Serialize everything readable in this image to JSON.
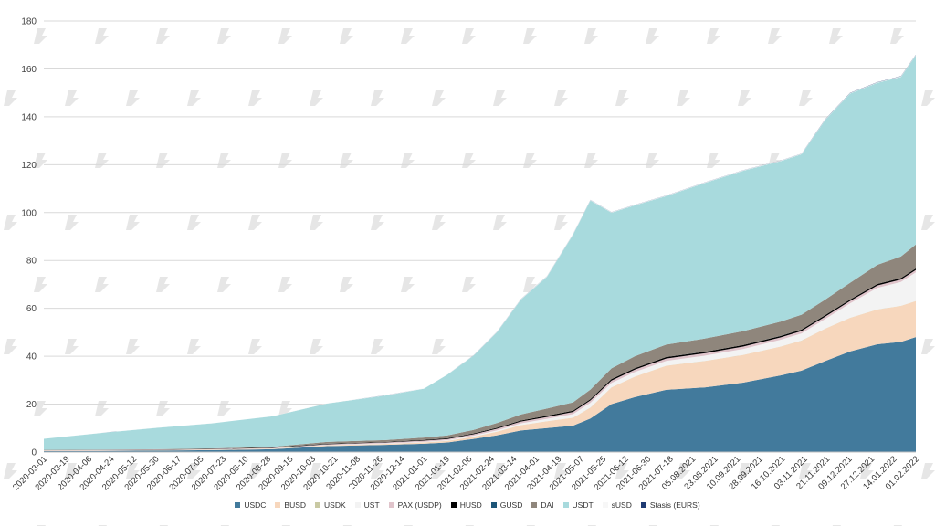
{
  "chart_data": {
    "type": "area",
    "stacked": true,
    "title": "",
    "xlabel": "",
    "ylabel": "",
    "ylim": [
      0,
      180
    ],
    "yticks": [
      0,
      20,
      40,
      60,
      80,
      100,
      120,
      140,
      160,
      180
    ],
    "grid": true,
    "legend_position": "bottom",
    "x_tick_labels": [
      "2020-03-01",
      "2020-03-19",
      "2020-04-06",
      "2020-04-24",
      "2020-05-12",
      "2020-05-30",
      "2020-06-17",
      "2020-07-05",
      "2020-07-23",
      "2020-08-10",
      "2020-08-28",
      "2020-09-15",
      "2020-10-03",
      "2020-10-21",
      "2020-11-08",
      "2020-11-26",
      "2020-12-14",
      "2021-01-01",
      "2021-01-19",
      "2021-02-06",
      "2021-02-24",
      "2021-03-14",
      "2021-04-01",
      "2021-04-19",
      "2021-05-07",
      "2021-05-25",
      "2021-06-12",
      "2021-06-30",
      "2021-07-18",
      "05.08.2021",
      "23.08.2021",
      "10.09.2021",
      "28.09.2021",
      "16.10.2021",
      "03.11.2021",
      "21.11.2021",
      "09.12.2021",
      "27.12.2021",
      "14.01.2022",
      "01.02.2022"
    ],
    "sample_points": [
      "2020-03-01",
      "2020-04-15",
      "2020-06-01",
      "2020-07-15",
      "2020-09-01",
      "2020-10-15",
      "2020-12-01",
      "2021-01-01",
      "2021-01-20",
      "2021-02-10",
      "2021-03-01",
      "2021-03-20",
      "2021-04-10",
      "2021-05-01",
      "2021-05-15",
      "2021-06-01",
      "2021-06-20",
      "2021-07-15",
      "2021-08-15",
      "2021-09-15",
      "2021-10-15",
      "2021-11-01",
      "2021-11-20",
      "2021-12-10",
      "2022-01-01",
      "2022-01-20",
      "2022-02-01"
    ],
    "series": [
      {
        "name": "USDC",
        "color": "#427a9c",
        "values": [
          0.4,
          0.5,
          0.6,
          0.8,
          1.2,
          2.5,
          3,
          3.5,
          4,
          5.5,
          7,
          9,
          10,
          11,
          14,
          20,
          23,
          26,
          27,
          29,
          32,
          34,
          38,
          42,
          45,
          46,
          48
        ]
      },
      {
        "name": "BUSD",
        "color": "#f7d7bd",
        "values": [
          0.1,
          0.1,
          0.1,
          0.2,
          0.2,
          0.3,
          0.4,
          0.5,
          0.6,
          0.9,
          1.5,
          2.2,
          2.8,
          3.3,
          4.5,
          7,
          8.5,
          10,
          11,
          11.5,
          12,
          12.5,
          13.5,
          14,
          14.5,
          15,
          15
        ]
      },
      {
        "name": "USDK",
        "color": "#c9c9a3",
        "values": [
          0.05,
          0.05,
          0.05,
          0.05,
          0.05,
          0.05,
          0.05,
          0.05,
          0.05,
          0.05,
          0.05,
          0.05,
          0.05,
          0.05,
          0.05,
          0.05,
          0.05,
          0.05,
          0.05,
          0.05,
          0.05,
          0.05,
          0.05,
          0.05,
          0.05,
          0.05,
          0.05
        ]
      },
      {
        "name": "UST",
        "color": "#f3f3f3",
        "values": [
          0.01,
          0.01,
          0.01,
          0.01,
          0.05,
          0.1,
          0.15,
          0.2,
          0.3,
          0.4,
          0.5,
          0.7,
          1,
          1.5,
          2,
          1.8,
          1.9,
          2,
          2.2,
          2.5,
          2.8,
          3,
          4,
          6,
          9,
          10,
          12
        ]
      },
      {
        "name": "PAX (USDP)",
        "color": "#e0c4cb",
        "values": [
          0.2,
          0.2,
          0.2,
          0.2,
          0.2,
          0.3,
          0.4,
          0.5,
          0.5,
          0.6,
          0.7,
          0.8,
          0.8,
          0.9,
          1,
          1,
          1,
          1,
          1,
          1,
          1,
          1,
          1,
          1,
          1,
          1,
          1
        ]
      },
      {
        "name": "HUSD",
        "color": "#000000",
        "values": [
          0.05,
          0.05,
          0.1,
          0.1,
          0.2,
          0.2,
          0.2,
          0.3,
          0.3,
          0.3,
          0.4,
          0.4,
          0.5,
          0.5,
          0.5,
          0.6,
          0.6,
          0.6,
          0.6,
          0.6,
          0.6,
          0.6,
          0.6,
          0.6,
          0.6,
          0.6,
          0.6
        ]
      },
      {
        "name": "GUSD",
        "color": "#1d5577",
        "values": [
          0.01,
          0.01,
          0.01,
          0.01,
          0.01,
          0.01,
          0.01,
          0.01,
          0.01,
          0.01,
          0.01,
          0.01,
          0.01,
          0.01,
          0.01,
          0.01,
          0.01,
          0.01,
          0.01,
          0.01,
          0.01,
          0.01,
          0.01,
          0.01,
          0.01,
          0.01,
          0.01
        ]
      },
      {
        "name": "DAI",
        "color": "#8f867c",
        "values": [
          0.1,
          0.1,
          0.1,
          0.15,
          0.3,
          0.8,
          0.8,
          1,
          1.2,
          1.5,
          2,
          2.5,
          3,
          3.5,
          4,
          4.5,
          5,
          5.2,
          5.5,
          5.8,
          6,
          6.2,
          6.5,
          7,
          8,
          9,
          10
        ]
      },
      {
        "name": "USDT",
        "color": "#a8dadd",
        "values": [
          4.6,
          6.9,
          9,
          10.5,
          12.7,
          16,
          18.6,
          20.4,
          25.4,
          31,
          38,
          48,
          55,
          70,
          79,
          65,
          63,
          62,
          65,
          67,
          67,
          67,
          75,
          79,
          76,
          75,
          79
        ]
      },
      {
        "name": "sUSD",
        "color": "#f7f7f7",
        "values": [
          0.02,
          0.02,
          0.02,
          0.02,
          0.05,
          0.08,
          0.1,
          0.1,
          0.1,
          0.1,
          0.15,
          0.15,
          0.2,
          0.2,
          0.2,
          0.2,
          0.2,
          0.2,
          0.2,
          0.2,
          0.2,
          0.2,
          0.2,
          0.2,
          0.2,
          0.2,
          0.2
        ]
      },
      {
        "name": "Stasis (EURS)",
        "color": "#1f3b73",
        "values": [
          0.01,
          0.01,
          0.01,
          0.01,
          0.01,
          0.01,
          0.01,
          0.01,
          0.01,
          0.05,
          0.05,
          0.05,
          0.05,
          0.05,
          0.05,
          0.05,
          0.05,
          0.05,
          0.05,
          0.05,
          0.05,
          0.05,
          0.1,
          0.1,
          0.1,
          0.1,
          0.1
        ]
      }
    ]
  }
}
